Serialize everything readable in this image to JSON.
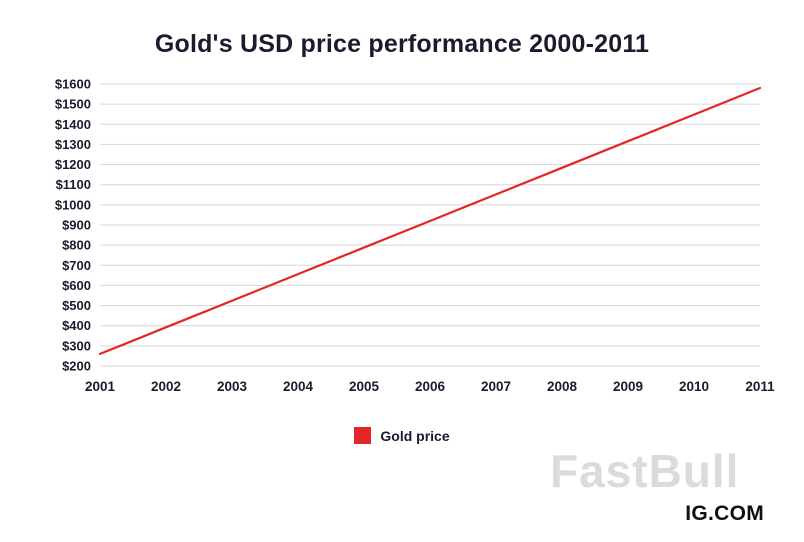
{
  "title": "Gold's USD price performance 2000-2011",
  "legend": {
    "label": "Gold price",
    "color": "#e42527"
  },
  "watermark_text": "FastBull",
  "source_text": "IG.COM",
  "colors": {
    "text": "#1c1b2e",
    "grid": "#d7d7d7",
    "line": "#e42527",
    "watermark": "#bfbfbf"
  },
  "chart_data": {
    "type": "line",
    "title": "Gold's USD price performance 2000-2011",
    "x": [
      2001,
      2002,
      2003,
      2004,
      2005,
      2006,
      2007,
      2008,
      2009,
      2010,
      2011
    ],
    "series": [
      {
        "name": "Gold price",
        "color": "#e42527",
        "values": [
          260,
          392,
          524,
          656,
          788,
          920,
          1052,
          1184,
          1316,
          1448,
          1580
        ]
      }
    ],
    "xlabel": "",
    "ylabel": "",
    "ylim": [
      200,
      1600
    ],
    "ytick_step": 100,
    "yticks": [
      "$200",
      "$300",
      "$400",
      "$500",
      "$600",
      "$700",
      "$800",
      "$900",
      "$1000",
      "$1100",
      "$1200",
      "$1300",
      "$1400",
      "$1500",
      "$1600"
    ],
    "grid": true,
    "legend_position": "bottom"
  }
}
